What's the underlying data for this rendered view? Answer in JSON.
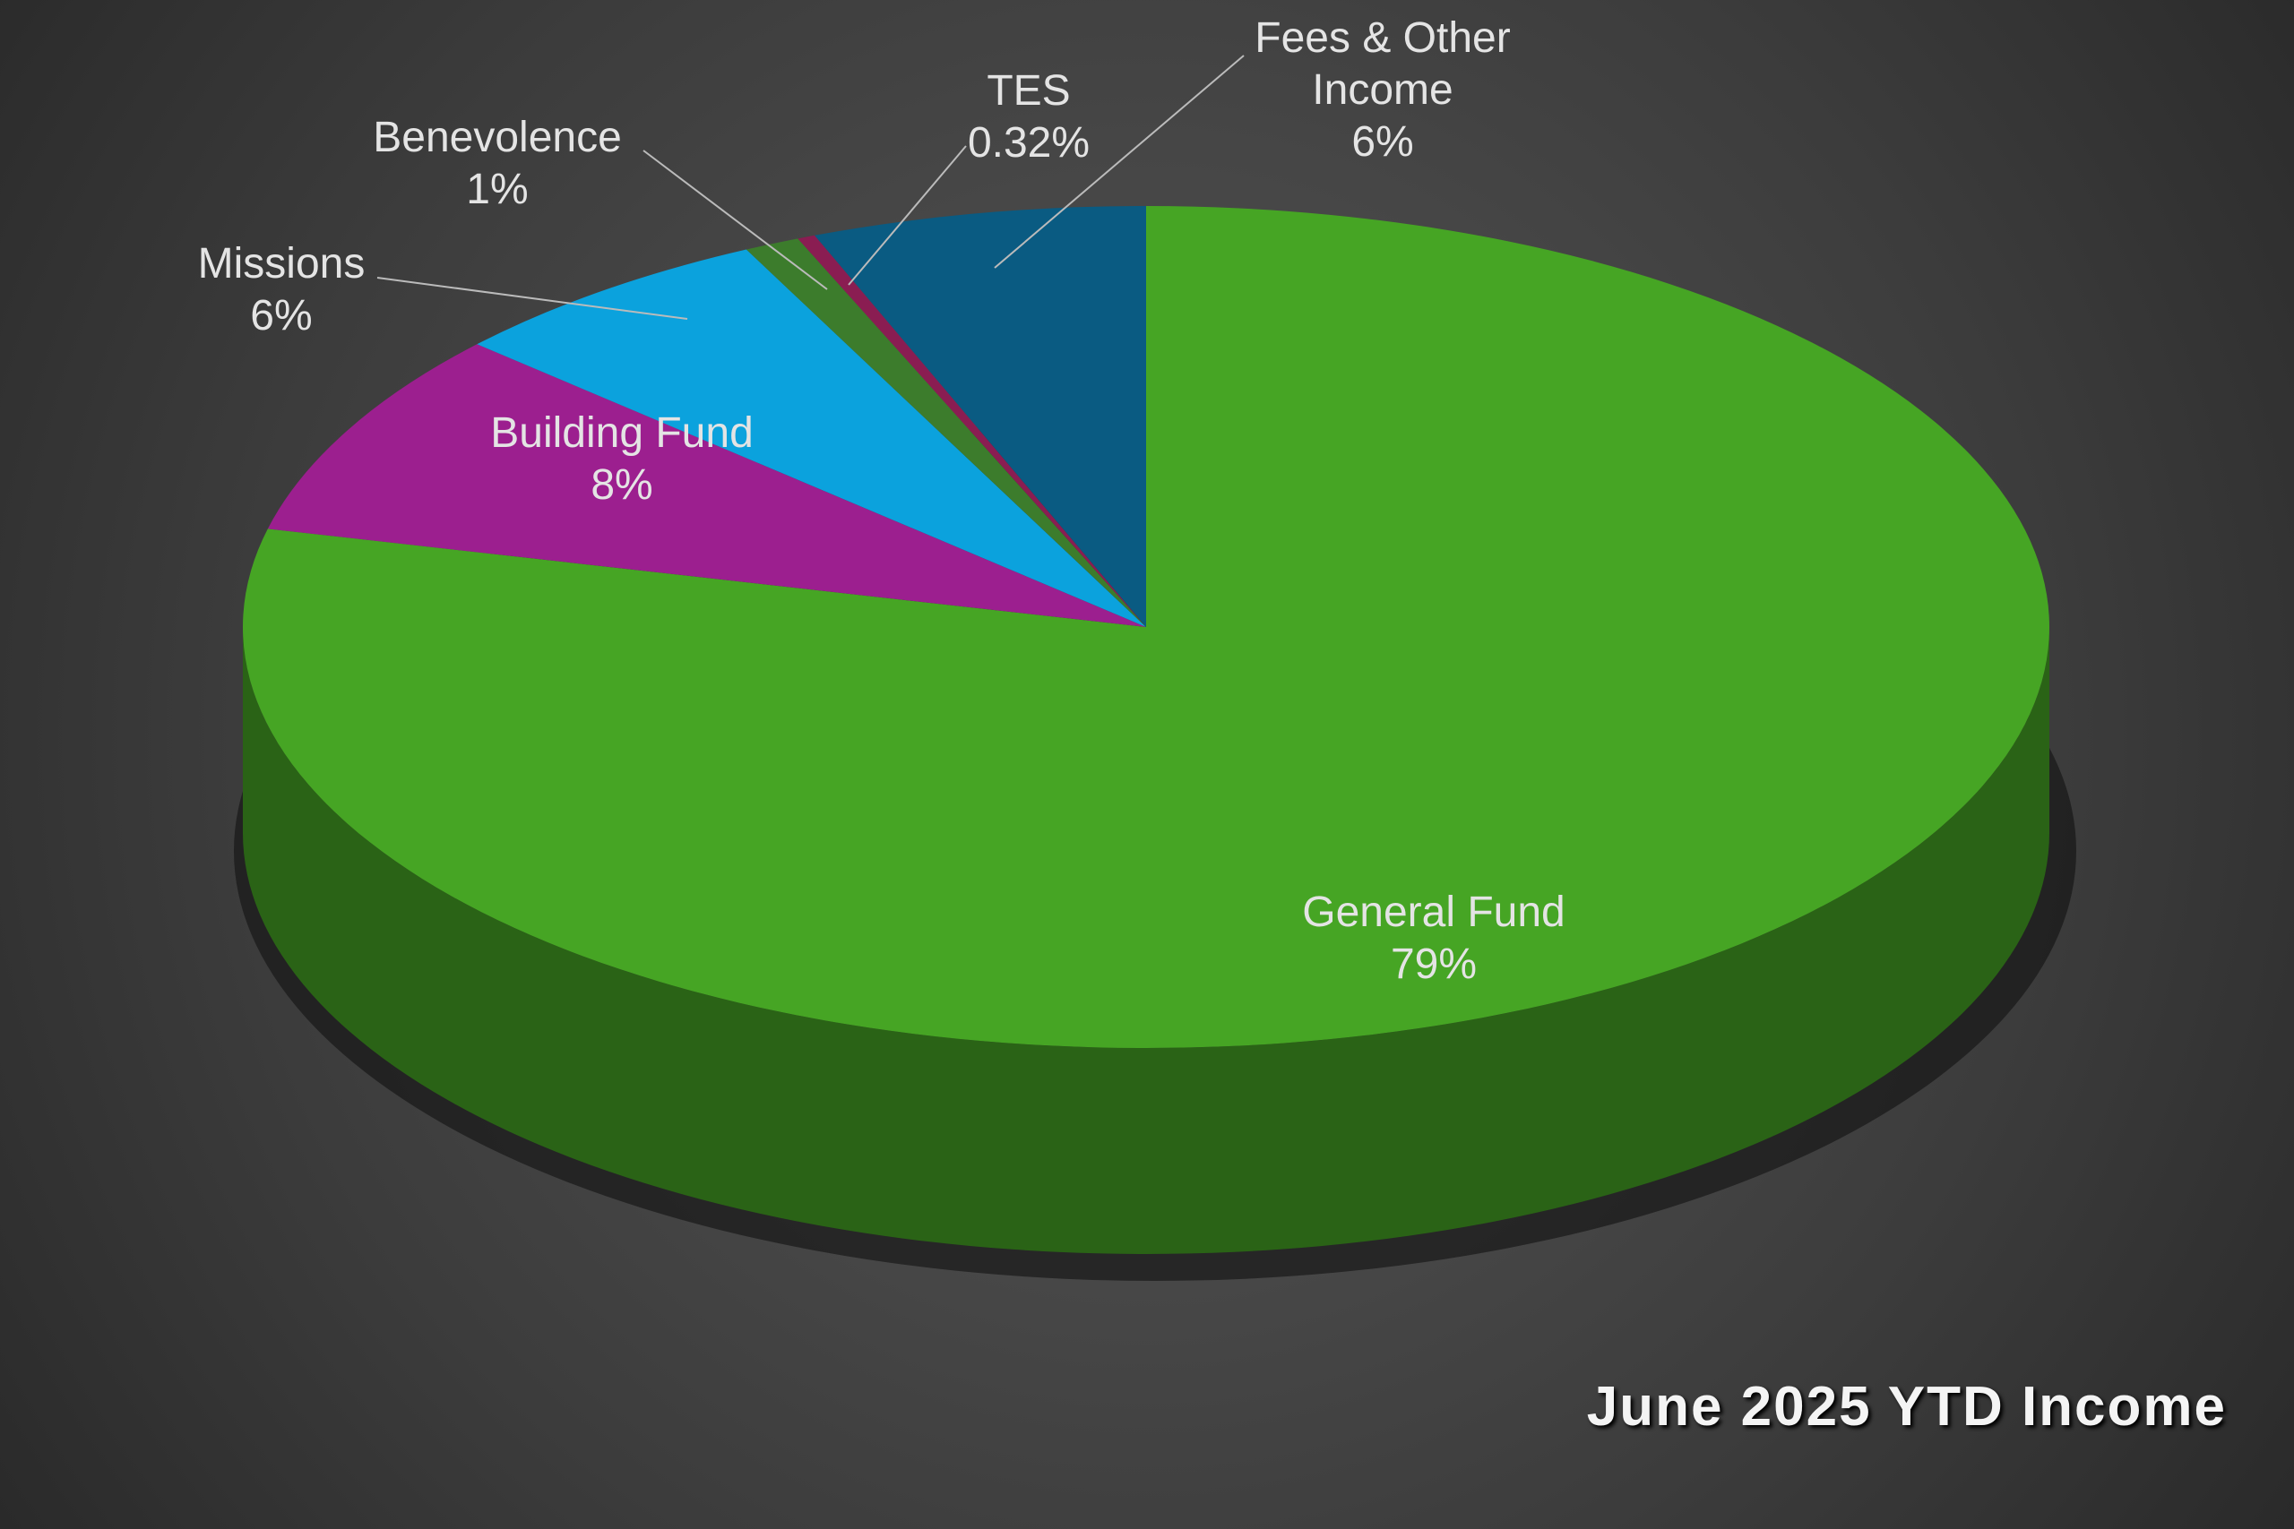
{
  "chart_data": {
    "type": "pie3d",
    "title": "June 2025 YTD Income",
    "categories": [
      "General Fund",
      "Building Fund",
      "Missions",
      "Benevolence",
      "TES",
      "Fees & Other Income"
    ],
    "values": [
      79,
      8,
      6,
      1,
      0.32,
      6
    ],
    "value_labels": [
      "79%",
      "8%",
      "6%",
      "1%",
      "0.32%",
      "6%"
    ],
    "colors": [
      "#46a524",
      "#9c1f8f",
      "#0ba2dd",
      "#3c7c2c",
      "#8a1d52",
      "#0a5b82"
    ]
  }
}
